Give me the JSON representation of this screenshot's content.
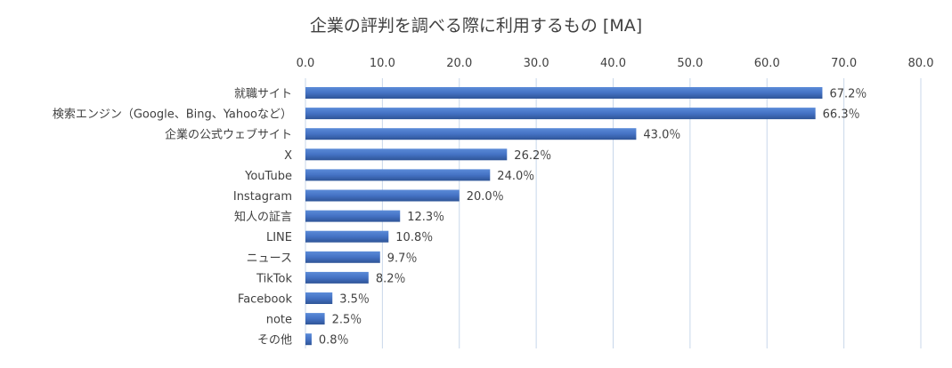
{
  "chart_data": {
    "type": "bar",
    "orientation": "horizontal",
    "title": "企業の評判を調べる際に利用するもの [MA]",
    "categories": [
      "就職サイト",
      "検索エンジン（Google、Bing、Yahooなど）",
      "企業の公式ウェブサイト",
      "X",
      "YouTube",
      "Instagram",
      "知人の証言",
      "LINE",
      "ニュース",
      "TikTok",
      "Facebook",
      "note",
      "その他"
    ],
    "values": [
      67.2,
      66.3,
      43.0,
      26.2,
      24.0,
      20.0,
      12.3,
      10.8,
      9.7,
      8.2,
      3.5,
      2.5,
      0.8
    ],
    "value_labels": [
      "67.2％",
      "66.3％",
      "43.0％",
      "26.2％",
      "24.0％",
      "20.0％",
      "12.3％",
      "10.8％",
      "9.7％",
      "8.2％",
      "3.5％",
      "2.5％",
      "0.8％"
    ],
    "xlim": [
      0,
      80
    ],
    "x_ticks": [
      "0.0",
      "10.0",
      "20.0",
      "30.0",
      "40.0",
      "50.0",
      "60.0",
      "70.0",
      "80.0"
    ],
    "x_axis_position": "top",
    "grid": true,
    "bar_color": "#4472c4",
    "grid_color": "#c8d7ea"
  }
}
